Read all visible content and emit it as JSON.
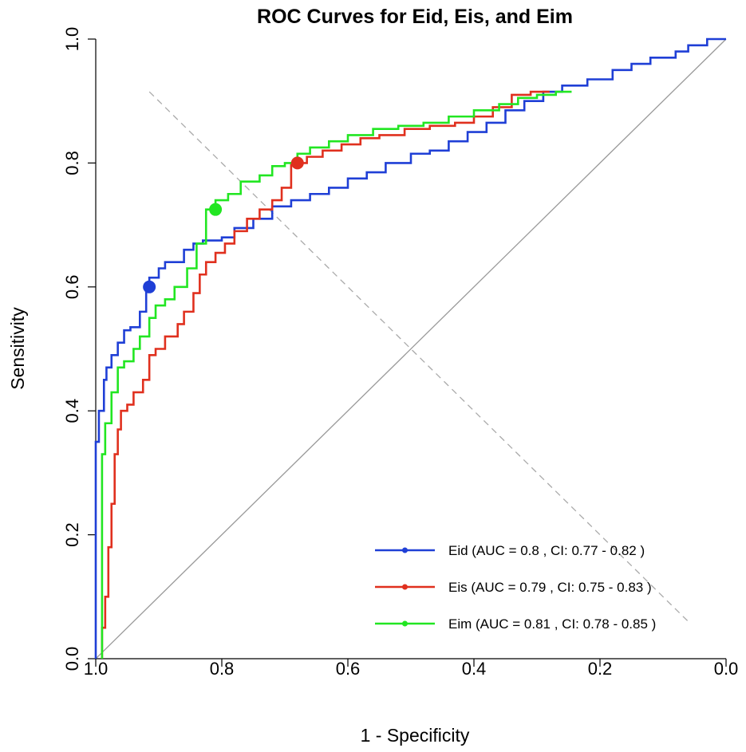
{
  "chart_data": {
    "type": "line",
    "title": "ROC Curves for Eid, Eis, and Eim",
    "xlabel": "1 - Specificity",
    "ylabel": "Sensitivity",
    "x_axis_variable": "specificity (reversed axis, 1.0 at left)",
    "xlim": [
      1.0,
      0.0
    ],
    "ylim": [
      0.0,
      1.0
    ],
    "x_ticks": [
      "1.0",
      "0.8",
      "0.6",
      "0.4",
      "0.2",
      "0.0"
    ],
    "y_ticks": [
      "0.0",
      "0.2",
      "0.4",
      "0.6",
      "0.8",
      "1.0"
    ],
    "legend_position": "bottom-right",
    "series": [
      {
        "name": "Eid",
        "legend": "Eid (AUC = 0.8 , CI: 0.77 - 0.82 )",
        "auc": 0.8,
        "ci": [
          0.77,
          0.82
        ],
        "color": "#1f3fd6",
        "optimal_point": {
          "specificity": 0.915,
          "sensitivity": 0.6
        },
        "points": [
          [
            1.0,
            0.0
          ],
          [
            1.0,
            0.31
          ],
          [
            0.995,
            0.35
          ],
          [
            0.987,
            0.4
          ],
          [
            0.983,
            0.45
          ],
          [
            0.975,
            0.47
          ],
          [
            0.965,
            0.49
          ],
          [
            0.955,
            0.51
          ],
          [
            0.945,
            0.53
          ],
          [
            0.93,
            0.535
          ],
          [
            0.92,
            0.56
          ],
          [
            0.915,
            0.6
          ],
          [
            0.9,
            0.615
          ],
          [
            0.89,
            0.63
          ],
          [
            0.875,
            0.64
          ],
          [
            0.86,
            0.64
          ],
          [
            0.845,
            0.66
          ],
          [
            0.83,
            0.67
          ],
          [
            0.8,
            0.675
          ],
          [
            0.78,
            0.68
          ],
          [
            0.75,
            0.695
          ],
          [
            0.72,
            0.71
          ],
          [
            0.69,
            0.73
          ],
          [
            0.66,
            0.74
          ],
          [
            0.63,
            0.75
          ],
          [
            0.6,
            0.76
          ],
          [
            0.57,
            0.775
          ],
          [
            0.54,
            0.785
          ],
          [
            0.5,
            0.8
          ],
          [
            0.47,
            0.815
          ],
          [
            0.44,
            0.82
          ],
          [
            0.41,
            0.835
          ],
          [
            0.38,
            0.85
          ],
          [
            0.35,
            0.865
          ],
          [
            0.32,
            0.885
          ],
          [
            0.29,
            0.9
          ],
          [
            0.26,
            0.915
          ],
          [
            0.22,
            0.925
          ],
          [
            0.18,
            0.935
          ],
          [
            0.15,
            0.95
          ],
          [
            0.12,
            0.96
          ],
          [
            0.08,
            0.97
          ],
          [
            0.06,
            0.98
          ],
          [
            0.03,
            0.99
          ],
          [
            0.01,
            1.0
          ],
          [
            0.0,
            1.0
          ]
        ]
      },
      {
        "name": "Eis",
        "legend": "Eis (AUC = 0.79 , CI: 0.75 - 0.83 )",
        "auc": 0.79,
        "ci": [
          0.75,
          0.83
        ],
        "color": "#e0301e",
        "optimal_point": {
          "specificity": 0.68,
          "sensitivity": 0.8
        },
        "points": [
          [
            0.99,
            0.0
          ],
          [
            0.985,
            0.05
          ],
          [
            0.98,
            0.1
          ],
          [
            0.975,
            0.18
          ],
          [
            0.97,
            0.25
          ],
          [
            0.965,
            0.33
          ],
          [
            0.96,
            0.37
          ],
          [
            0.95,
            0.4
          ],
          [
            0.94,
            0.41
          ],
          [
            0.925,
            0.43
          ],
          [
            0.915,
            0.45
          ],
          [
            0.905,
            0.49
          ],
          [
            0.89,
            0.5
          ],
          [
            0.87,
            0.52
          ],
          [
            0.86,
            0.54
          ],
          [
            0.845,
            0.56
          ],
          [
            0.835,
            0.59
          ],
          [
            0.825,
            0.62
          ],
          [
            0.81,
            0.64
          ],
          [
            0.795,
            0.655
          ],
          [
            0.78,
            0.67
          ],
          [
            0.76,
            0.69
          ],
          [
            0.74,
            0.71
          ],
          [
            0.72,
            0.725
          ],
          [
            0.705,
            0.74
          ],
          [
            0.69,
            0.76
          ],
          [
            0.68,
            0.8
          ],
          [
            0.665,
            0.8
          ],
          [
            0.64,
            0.81
          ],
          [
            0.61,
            0.82
          ],
          [
            0.58,
            0.83
          ],
          [
            0.55,
            0.84
          ],
          [
            0.51,
            0.845
          ],
          [
            0.47,
            0.855
          ],
          [
            0.43,
            0.86
          ],
          [
            0.4,
            0.865
          ],
          [
            0.37,
            0.875
          ],
          [
            0.34,
            0.89
          ],
          [
            0.31,
            0.91
          ],
          [
            0.28,
            0.915
          ]
        ]
      },
      {
        "name": "Eim",
        "legend": "Eim (AUC = 0.81 , CI: 0.78 - 0.85 )",
        "auc": 0.81,
        "ci": [
          0.78,
          0.85
        ],
        "color": "#22e622",
        "optimal_point": {
          "specificity": 0.81,
          "sensitivity": 0.725
        },
        "points": [
          [
            0.99,
            0.0
          ],
          [
            0.99,
            0.3
          ],
          [
            0.985,
            0.33
          ],
          [
            0.975,
            0.38
          ],
          [
            0.965,
            0.43
          ],
          [
            0.955,
            0.47
          ],
          [
            0.94,
            0.48
          ],
          [
            0.93,
            0.5
          ],
          [
            0.915,
            0.52
          ],
          [
            0.905,
            0.55
          ],
          [
            0.89,
            0.57
          ],
          [
            0.875,
            0.58
          ],
          [
            0.855,
            0.6
          ],
          [
            0.84,
            0.63
          ],
          [
            0.825,
            0.67
          ],
          [
            0.81,
            0.725
          ],
          [
            0.79,
            0.74
          ],
          [
            0.77,
            0.75
          ],
          [
            0.74,
            0.77
          ],
          [
            0.72,
            0.78
          ],
          [
            0.7,
            0.795
          ],
          [
            0.68,
            0.8
          ],
          [
            0.66,
            0.815
          ],
          [
            0.63,
            0.825
          ],
          [
            0.6,
            0.835
          ],
          [
            0.56,
            0.845
          ],
          [
            0.52,
            0.855
          ],
          [
            0.48,
            0.86
          ],
          [
            0.44,
            0.865
          ],
          [
            0.4,
            0.875
          ],
          [
            0.36,
            0.885
          ],
          [
            0.33,
            0.895
          ],
          [
            0.3,
            0.905
          ],
          [
            0.27,
            0.91
          ],
          [
            0.245,
            0.915
          ]
        ]
      }
    ],
    "reference_lines": [
      {
        "name": "chance-diagonal",
        "style": "solid",
        "color": "#999999",
        "from": [
          1.0,
          0.0
        ],
        "to": [
          0.0,
          1.0
        ]
      },
      {
        "name": "dashed-cross-diagonal",
        "style": "dashed",
        "color": "#aaaaaa",
        "from": [
          0.915,
          0.915
        ],
        "to": [
          0.06,
          0.06
        ]
      }
    ]
  }
}
